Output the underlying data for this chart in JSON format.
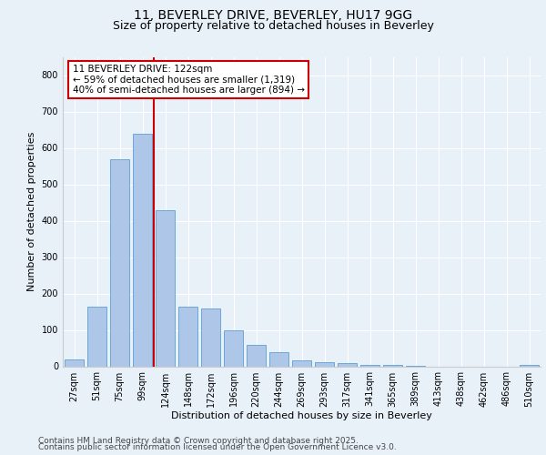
{
  "title1": "11, BEVERLEY DRIVE, BEVERLEY, HU17 9GG",
  "title2": "Size of property relative to detached houses in Beverley",
  "xlabel": "Distribution of detached houses by size in Beverley",
  "ylabel": "Number of detached properties",
  "categories": [
    "27sqm",
    "51sqm",
    "75sqm",
    "99sqm",
    "124sqm",
    "148sqm",
    "172sqm",
    "196sqm",
    "220sqm",
    "244sqm",
    "269sqm",
    "293sqm",
    "317sqm",
    "341sqm",
    "365sqm",
    "389sqm",
    "413sqm",
    "438sqm",
    "462sqm",
    "486sqm",
    "510sqm"
  ],
  "values": [
    20,
    165,
    570,
    640,
    430,
    165,
    160,
    100,
    58,
    38,
    17,
    12,
    9,
    5,
    4,
    2,
    0,
    0,
    0,
    0,
    5
  ],
  "bar_color": "#aec6e8",
  "bar_edge_color": "#5a9fd4",
  "vline_index": 4,
  "vline_color": "#cc0000",
  "annotation_text": "11 BEVERLEY DRIVE: 122sqm\n← 59% of detached houses are smaller (1,319)\n40% of semi-detached houses are larger (894) →",
  "annotation_box_color": "#ffffff",
  "annotation_box_edge": "#cc0000",
  "ylim": [
    0,
    850
  ],
  "yticks": [
    0,
    100,
    200,
    300,
    400,
    500,
    600,
    700,
    800
  ],
  "bg_color": "#e8f0f8",
  "plot_bg_color": "#e8f0f8",
  "grid_color": "#ffffff",
  "footer1": "Contains HM Land Registry data © Crown copyright and database right 2025.",
  "footer2": "Contains public sector information licensed under the Open Government Licence v3.0.",
  "title_fontsize": 10,
  "title2_fontsize": 9,
  "axis_label_fontsize": 8,
  "tick_fontsize": 7,
  "annotation_fontsize": 7.5,
  "footer_fontsize": 6.5
}
